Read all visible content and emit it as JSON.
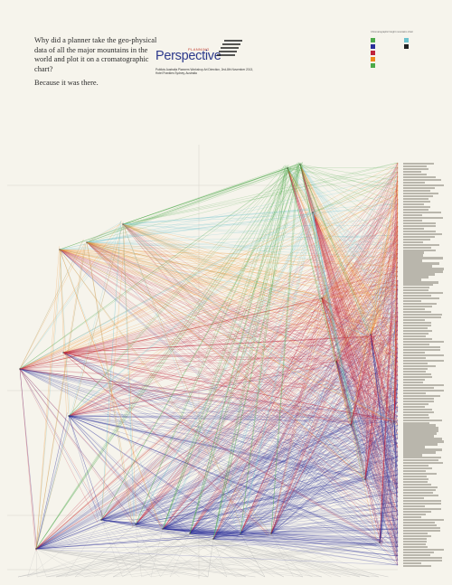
{
  "headline": {
    "question": "Why did a planner take the geo-physical data of all the major mountains in the world and plot it on a cromatographic chart?",
    "answer": "Because it was there."
  },
  "brand": {
    "small_text": "PLANNING",
    "name": "Perspective",
    "caption": "Publicis Australia Planners Workshop Art Direction, 2nd-8th November 2013, Hotel Frankies Sydney, Australia"
  },
  "legend": {
    "title": "Chromatographic height mountains chart",
    "colors": {
      "green": "#4caa4a",
      "cyan": "#6cc3cf",
      "orange": "#ee8a1e",
      "red": "#c0243c",
      "blue": "#2b2f9a",
      "grey": "#b9b9b9",
      "black": "#222222"
    }
  },
  "chart": {
    "colors": {
      "grey": "#b9b9b9",
      "blue": "#2b2f9a",
      "red": "#c0243c",
      "orange": "#ee8a1e",
      "green": "#4caa4a",
      "cyan": "#6cc3cf"
    }
  }
}
